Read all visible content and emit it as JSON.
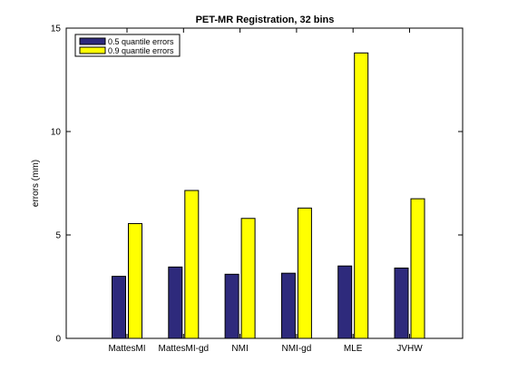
{
  "chart_data": {
    "type": "bar",
    "title": "PET-MR Registration, 32 bins",
    "xlabel": "",
    "ylabel": "errors (mm)",
    "ylim": [
      0,
      15
    ],
    "yticks": [
      0,
      5,
      10,
      15
    ],
    "grid": false,
    "legend_position": "top-left",
    "categories": [
      "MattesMI",
      "MattesMI-gd",
      "NMI",
      "NMI-gd",
      "MLE",
      "JVHW"
    ],
    "series": [
      {
        "name": "0.5 quantile errors",
        "color": "#2e2a7c",
        "values": [
          3.0,
          3.45,
          3.1,
          3.15,
          3.5,
          3.4
        ]
      },
      {
        "name": "0.9 quantile errors",
        "color": "#ffff00",
        "values": [
          5.55,
          7.15,
          5.8,
          6.3,
          13.8,
          6.75
        ]
      }
    ]
  }
}
